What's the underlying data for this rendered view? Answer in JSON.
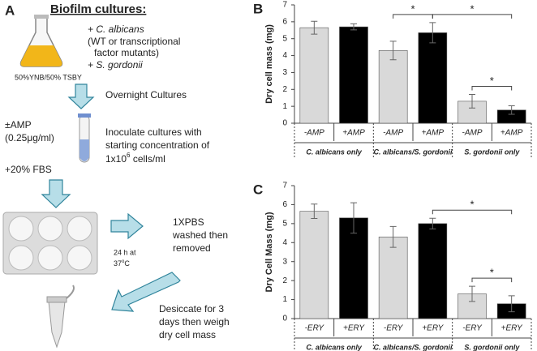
{
  "panel_a": {
    "label": "A",
    "title": "Biofilm cultures:",
    "flask_label": "50%YNB/50% TSBY",
    "organisms": [
      "+ C. albicans",
      "(WT or transcriptional",
      "factor mutants)",
      "+ S. gordonii"
    ],
    "step1": "Overnight Cultures",
    "antibiotic": [
      "±AMP",
      "(0.25μg/ml)"
    ],
    "inoculate": [
      "Inoculate cultures with",
      "starting concentration of"
    ],
    "concentration": {
      "base": "1x10",
      "exponent": "6",
      "unit": " cells/ml"
    },
    "serum": "+20% FBS",
    "wash": [
      "1XPBS",
      "washed then",
      "removed"
    ],
    "incubation": {
      "time": "24 h at",
      "temp_base": "37",
      "temp_degree": "o",
      "temp_unit": "C"
    },
    "final": [
      "Desiccate for 3",
      "days then weigh",
      "dry cell mass"
    ]
  },
  "chart_data": [
    {
      "type": "bar",
      "panel_label": "B",
      "y_label": "Dry cell mass (mg)",
      "categories": [
        "-AMP",
        "+AMP",
        "-AMP",
        "+AMP",
        "-AMP",
        "+AMP"
      ],
      "groups": [
        "C. albicans only",
        "C. albicans/S. gordonii",
        "S. gordonii only"
      ],
      "values": [
        5.65,
        5.7,
        4.3,
        5.35,
        1.3,
        0.78
      ],
      "errors": [
        0.38,
        0.18,
        0.55,
        0.6,
        0.4,
        0.25
      ],
      "colors": [
        "#d9d9d9",
        "#000000",
        "#d9d9d9",
        "#000000",
        "#d9d9d9",
        "#000000"
      ],
      "ylim": [
        0,
        7
      ],
      "yticks": [
        0,
        1,
        2,
        3,
        4,
        5,
        6,
        7
      ],
      "brackets": [
        {
          "label": "*",
          "from": 2,
          "to": 3
        },
        {
          "label": "*",
          "from": 3,
          "to": 5
        },
        {
          "label": "*",
          "from": 4,
          "to": 5
        }
      ]
    },
    {
      "type": "bar",
      "panel_label": "C",
      "y_label": "Dry Cell Mass (mg)",
      "categories": [
        "-ERY",
        "+ERY",
        "-ERY",
        "+ERY",
        "-ERY",
        "+ERY"
      ],
      "groups": [
        "C. albicans only",
        "C. albicans/S. gordonii",
        "S. gordonii only"
      ],
      "values": [
        5.65,
        5.3,
        4.3,
        5.0,
        1.3,
        0.78
      ],
      "errors": [
        0.38,
        0.8,
        0.55,
        0.28,
        0.4,
        0.42
      ],
      "colors": [
        "#d9d9d9",
        "#000000",
        "#d9d9d9",
        "#000000",
        "#d9d9d9",
        "#000000"
      ],
      "ylim": [
        0,
        7
      ],
      "yticks": [
        0,
        1,
        2,
        3,
        4,
        5,
        6,
        7
      ],
      "brackets": [
        {
          "label": "*",
          "from": 3,
          "to": 5
        },
        {
          "label": "*",
          "from": 4,
          "to": 5
        }
      ]
    }
  ]
}
